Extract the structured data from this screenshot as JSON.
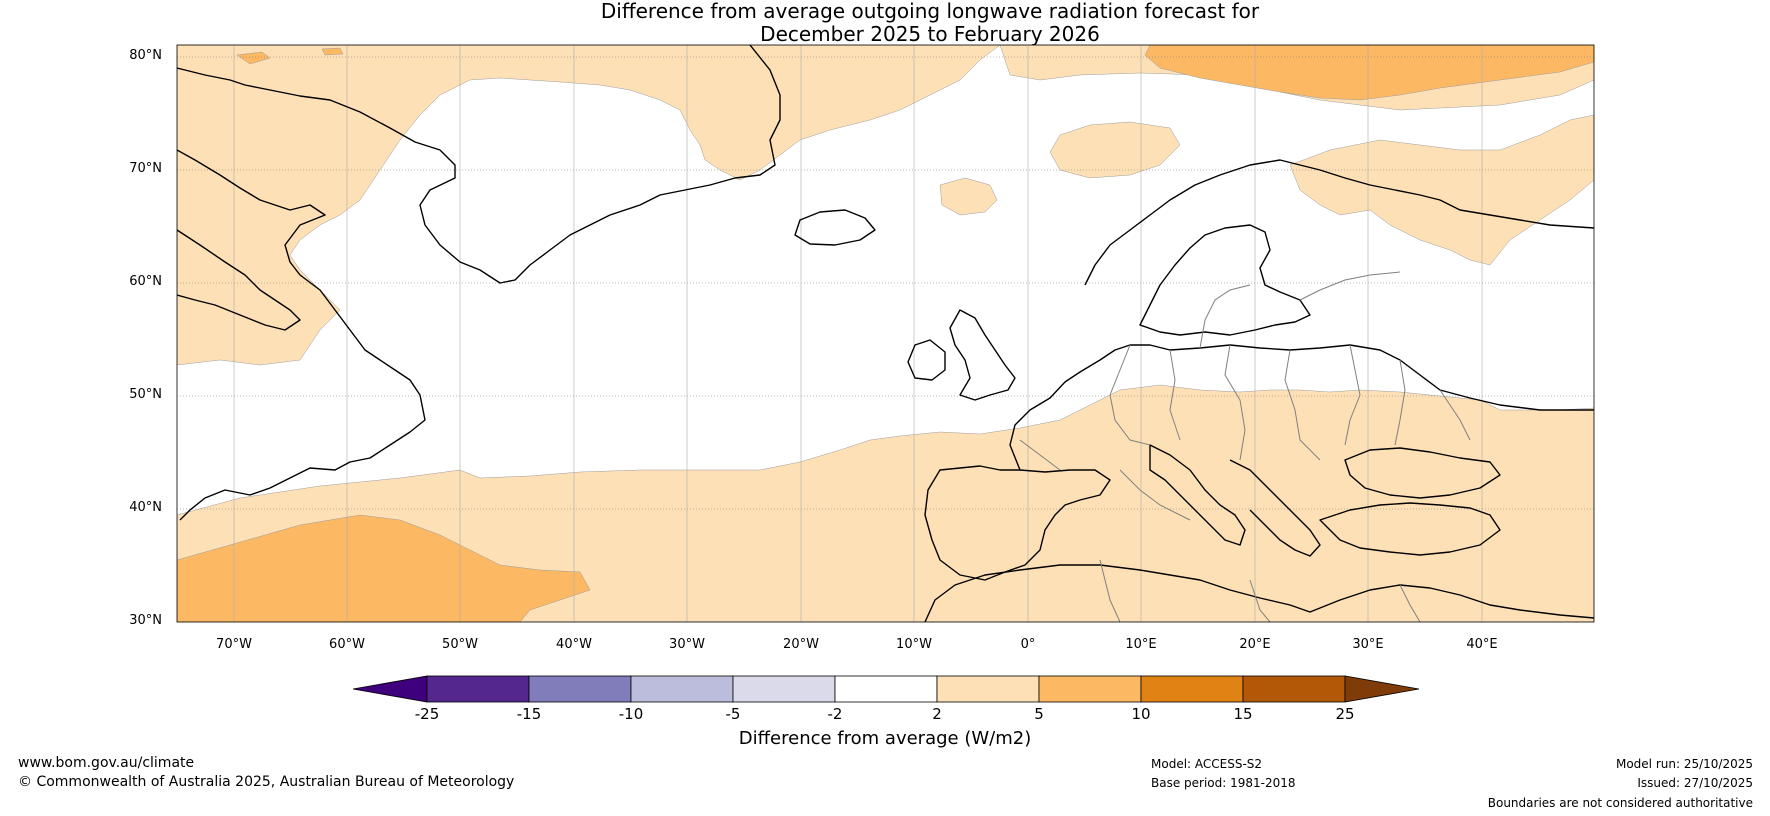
{
  "title": {
    "line1": "Difference from average outgoing longwave radiation forecast for",
    "line2": "December 2025 to February 2026"
  },
  "latitude_labels": [
    "80°N",
    "70°N",
    "60°N",
    "50°N",
    "40°N",
    "30°N"
  ],
  "longitude_labels": [
    "70°W",
    "60°W",
    "50°W",
    "40°W",
    "30°W",
    "20°W",
    "10°W",
    "0°",
    "10°E",
    "20°E",
    "30°E",
    "40°E"
  ],
  "colorbar": {
    "ticks": [
      "-25",
      "-15",
      "-10",
      "-5",
      "-2",
      "2",
      "5",
      "10",
      "15",
      "25"
    ],
    "colors": [
      "#3f007d",
      "#54278f",
      "#807dba",
      "#bcbddc",
      "#dadaeb",
      "#ffffff",
      "#fee0b6",
      "#fdb863",
      "#e08214",
      "#b35806",
      "#7f3b08"
    ],
    "title": "Difference from average (W/m2)"
  },
  "footer": {
    "website": "www.bom.gov.au/climate",
    "copyright": "© Commonwealth of Australia 2025, Australian Bureau of Meteorology",
    "model": "Model: ACCESS-S2",
    "base_period": "Base period: 1981-2018",
    "model_run": "Model run: 25/10/2025",
    "issued": "Issued: 27/10/2025",
    "disclaimer": "Boundaries are not considered authoritative"
  }
}
